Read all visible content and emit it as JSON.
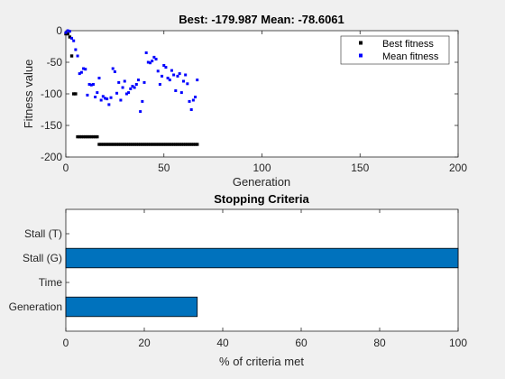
{
  "chart_data": [
    {
      "type": "scatter",
      "title": "Best: -179.987 Mean: -78.6061",
      "xlabel": "Generation",
      "ylabel": "Fitness value",
      "xlim": [
        0,
        200
      ],
      "ylim": [
        -200,
        0
      ],
      "xticks": [
        "0",
        "50",
        "100",
        "150",
        "200"
      ],
      "yticks": [
        "0",
        "-50",
        "-100",
        "-150",
        "-200"
      ],
      "legend_position": "top-right",
      "series": [
        {
          "name": "Best fitness",
          "color": "#000000",
          "marker": "square",
          "points": [
            [
              0,
              -5
            ],
            [
              1,
              -5
            ],
            [
              2,
              -10
            ],
            [
              3,
              -40
            ],
            [
              4,
              -100
            ],
            [
              5,
              -100
            ],
            [
              6,
              -168
            ],
            [
              7,
              -168
            ],
            [
              8,
              -168
            ],
            [
              9,
              -168
            ],
            [
              10,
              -168
            ],
            [
              11,
              -168
            ],
            [
              12,
              -168
            ],
            [
              13,
              -168
            ],
            [
              14,
              -168
            ],
            [
              15,
              -168
            ],
            [
              16,
              -168
            ],
            [
              17,
              -180
            ],
            [
              18,
              -180
            ],
            [
              19,
              -180
            ],
            [
              20,
              -180
            ],
            [
              21,
              -180
            ],
            [
              22,
              -180
            ],
            [
              23,
              -180
            ],
            [
              24,
              -180
            ],
            [
              25,
              -180
            ],
            [
              26,
              -180
            ],
            [
              27,
              -180
            ],
            [
              28,
              -180
            ],
            [
              29,
              -180
            ],
            [
              30,
              -180
            ],
            [
              31,
              -180
            ],
            [
              32,
              -180
            ],
            [
              33,
              -180
            ],
            [
              34,
              -180
            ],
            [
              35,
              -180
            ],
            [
              36,
              -180
            ],
            [
              37,
              -180
            ],
            [
              38,
              -180
            ],
            [
              39,
              -180
            ],
            [
              40,
              -180
            ],
            [
              41,
              -180
            ],
            [
              42,
              -180
            ],
            [
              43,
              -180
            ],
            [
              44,
              -180
            ],
            [
              45,
              -180
            ],
            [
              46,
              -180
            ],
            [
              47,
              -180
            ],
            [
              48,
              -180
            ],
            [
              49,
              -180
            ],
            [
              50,
              -180
            ],
            [
              51,
              -180
            ],
            [
              52,
              -180
            ],
            [
              53,
              -180
            ],
            [
              54,
              -180
            ],
            [
              55,
              -180
            ],
            [
              56,
              -180
            ],
            [
              57,
              -180
            ],
            [
              58,
              -180
            ],
            [
              59,
              -180
            ],
            [
              60,
              -180
            ],
            [
              61,
              -180
            ],
            [
              62,
              -180
            ],
            [
              63,
              -180
            ],
            [
              64,
              -180
            ],
            [
              65,
              -180
            ],
            [
              66,
              -180
            ],
            [
              67,
              -180
            ]
          ]
        },
        {
          "name": "Mean fitness",
          "color": "#0000ff",
          "marker": "square",
          "points": [
            [
              0,
              -3
            ],
            [
              1,
              0
            ],
            [
              2,
              -1
            ],
            [
              3,
              -12
            ],
            [
              4,
              -16
            ],
            [
              5,
              -30
            ],
            [
              6,
              -40
            ],
            [
              7,
              -68
            ],
            [
              8,
              -66
            ],
            [
              9,
              -60
            ],
            [
              10,
              -61
            ],
            [
              11,
              -102
            ],
            [
              12,
              -85
            ],
            [
              13,
              -86
            ],
            [
              14,
              -85
            ],
            [
              15,
              -105
            ],
            [
              16,
              -98
            ],
            [
              17,
              -75
            ],
            [
              18,
              -110
            ],
            [
              19,
              -104
            ],
            [
              20,
              -107
            ],
            [
              21,
              -108
            ],
            [
              22,
              -117
            ],
            [
              23,
              -106
            ],
            [
              24,
              -60
            ],
            [
              25,
              -65
            ],
            [
              26,
              -99
            ],
            [
              27,
              -82
            ],
            [
              28,
              -110
            ],
            [
              29,
              -90
            ],
            [
              30,
              -80
            ],
            [
              31,
              -100
            ],
            [
              32,
              -98
            ],
            [
              33,
              -92
            ],
            [
              34,
              -88
            ],
            [
              35,
              -90
            ],
            [
              36,
              -85
            ],
            [
              37,
              -78
            ],
            [
              38,
              -128
            ],
            [
              39,
              -112
            ],
            [
              40,
              -82
            ],
            [
              41,
              -35
            ],
            [
              42,
              -50
            ],
            [
              43,
              -51
            ],
            [
              44,
              -48
            ],
            [
              45,
              -42
            ],
            [
              46,
              -45
            ],
            [
              47,
              -64
            ],
            [
              48,
              -85
            ],
            [
              49,
              -72
            ],
            [
              50,
              -55
            ],
            [
              51,
              -58
            ],
            [
              52,
              -75
            ],
            [
              53,
              -78
            ],
            [
              54,
              -63
            ],
            [
              55,
              -70
            ],
            [
              56,
              -95
            ],
            [
              57,
              -72
            ],
            [
              58,
              -68
            ],
            [
              59,
              -98
            ],
            [
              60,
              -80
            ],
            [
              61,
              -70
            ],
            [
              62,
              -84
            ],
            [
              63,
              -112
            ],
            [
              64,
              -125
            ],
            [
              65,
              -110
            ],
            [
              66,
              -105
            ],
            [
              67,
              -78
            ]
          ]
        }
      ]
    },
    {
      "type": "bar",
      "orientation": "horizontal",
      "title": "Stopping Criteria",
      "xlabel": "% of criteria met",
      "ylabel": "",
      "xlim": [
        0,
        100
      ],
      "xticks": [
        "0",
        "20",
        "40",
        "60",
        "80",
        "100"
      ],
      "categories": [
        "Stall (T)",
        "Stall (G)",
        "Time",
        "Generation"
      ],
      "values": [
        0,
        100,
        0,
        33.5
      ],
      "color": "#0072bd"
    }
  ]
}
